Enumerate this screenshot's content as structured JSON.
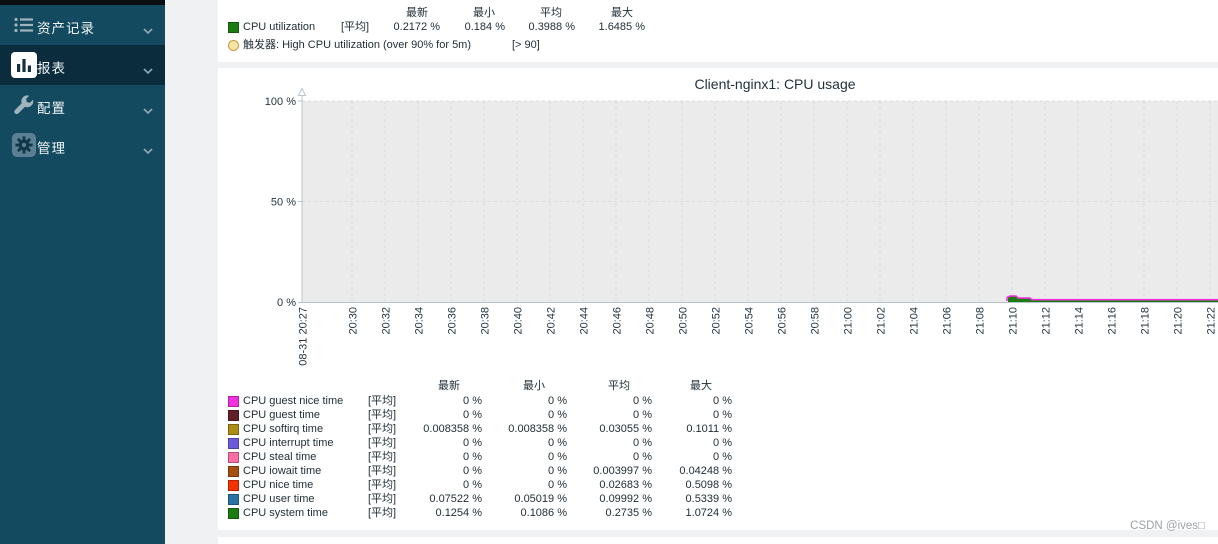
{
  "sidebar": {
    "items": [
      {
        "label": "资产记录",
        "icon": "inventory-list-icon",
        "active": false
      },
      {
        "label": "报表",
        "icon": "reports-bar-chart-icon",
        "active": true
      },
      {
        "label": "配置",
        "icon": "configuration-wrench-icon",
        "active": false
      },
      {
        "label": "管理",
        "icon": "administration-gear-icon",
        "active": false
      }
    ]
  },
  "top_legend": {
    "headers": [
      "最新",
      "最小",
      "平均",
      "最大"
    ],
    "item": {
      "label": "CPU utilization",
      "func": "[平均]",
      "color": "#1A7C11",
      "values": [
        "0.2172 %",
        "0.184 %",
        "0.3988 %",
        "1.6485 %"
      ]
    },
    "trigger": {
      "icon": "trigger-threshold-icon",
      "label": "触发器: High CPU utilization (over 90% for 5m)",
      "threshold": "[> 90]",
      "fill": "#F6E4A8",
      "border": "#C79A3B"
    }
  },
  "chart_data": {
    "type": "line",
    "title": "Client-nginx1: CPU usage",
    "ylabel": "%",
    "ylim": [
      0,
      100
    ],
    "grid": true,
    "y_ticks": [
      "100 %",
      "50 %",
      "0 %"
    ],
    "x_ticks": [
      "08-31 20:27",
      "20:30",
      "20:32",
      "20:34",
      "20:36",
      "20:38",
      "20:40",
      "20:42",
      "20:44",
      "20:46",
      "20:48",
      "20:50",
      "20:52",
      "20:54",
      "20:56",
      "20:58",
      "21:00",
      "21:02",
      "21:04",
      "21:06",
      "21:08",
      "21:10",
      "21:12",
      "21:14",
      "21:16",
      "21:18",
      "21:20",
      "21:22"
    ],
    "x_tick_red": [
      "08-31 20:27",
      "21:00"
    ],
    "tick_color": "#2b3a42",
    "red_tick_color": "#d9443f",
    "plot_bg": "#ebebeb",
    "data_window_note": "all series hug 0 % from ~21:10 to the right edge; small bump ~1-2 % around 21:10-21:11",
    "series": [
      {
        "name": "CPU guest nice time",
        "color": "#F230E0",
        "latest": "0 %",
        "min": "0 %",
        "avg": "0 %",
        "max": "0 %"
      },
      {
        "name": "CPU guest time",
        "color": "#611F27",
        "latest": "0 %",
        "min": "0 %",
        "avg": "0 %",
        "max": "0 %"
      },
      {
        "name": "CPU softirq time",
        "color": "#AC8C14",
        "latest": "0.008358 %",
        "min": "0.008358 %",
        "avg": "0.03055 %",
        "max": "0.1011 %"
      },
      {
        "name": "CPU interrupt time",
        "color": "#6C59DC",
        "latest": "0 %",
        "min": "0 %",
        "avg": "0 %",
        "max": "0 %"
      },
      {
        "name": "CPU steal time",
        "color": "#FC6EA3",
        "latest": "0 %",
        "min": "0 %",
        "avg": "0 %",
        "max": "0 %"
      },
      {
        "name": "CPU iowait time",
        "color": "#A54F10",
        "latest": "0 %",
        "min": "0 %",
        "avg": "0.003997 %",
        "max": "0.04248 %"
      },
      {
        "name": "CPU nice time",
        "color": "#F63100",
        "latest": "0 %",
        "min": "0 %",
        "avg": "0.02683 %",
        "max": "0.5098 %"
      },
      {
        "name": "CPU user time",
        "color": "#2774A4",
        "latest": "0.07522 %",
        "min": "0.05019 %",
        "avg": "0.09992 %",
        "max": "0.5339 %"
      },
      {
        "name": "CPU system time",
        "color": "#1A7C11",
        "latest": "0.1254 %",
        "min": "0.1086 %",
        "avg": "0.2735 %",
        "max": "1.0724 %"
      }
    ]
  },
  "bottom_legend": {
    "headers": [
      "最新",
      "最小",
      "平均",
      "最大"
    ],
    "func_label": "[平均]"
  },
  "watermark": "CSDN @ives□"
}
